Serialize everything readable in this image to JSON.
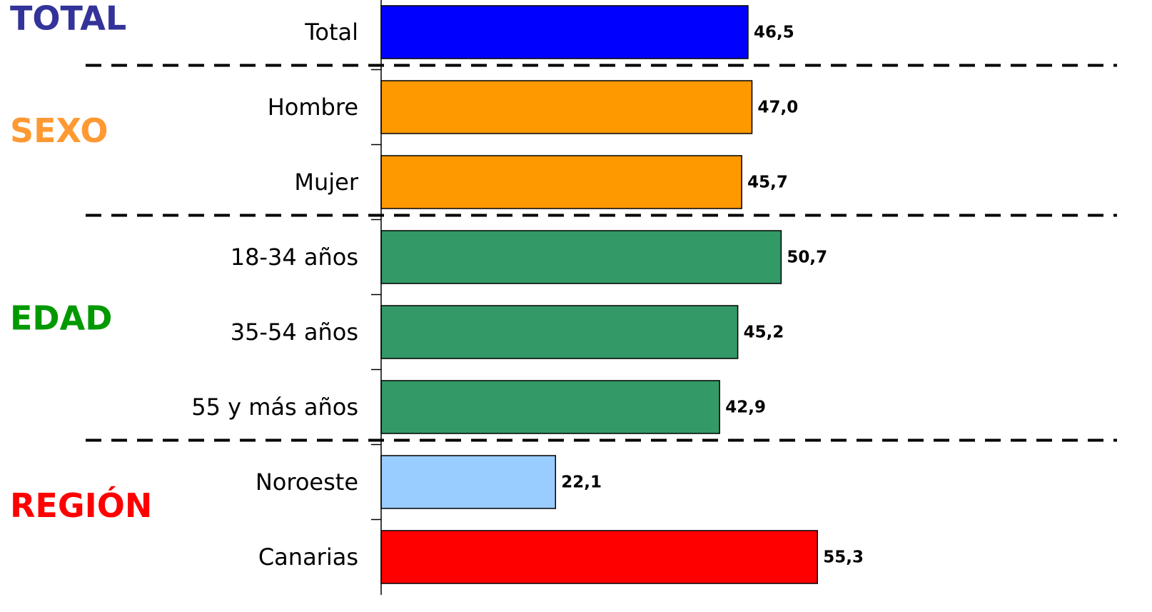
{
  "chart_data": {
    "type": "bar",
    "orientation": "horizontal",
    "xlim": [
      0,
      93
    ],
    "groups": [
      {
        "name": "TOTAL",
        "color": "#333399",
        "categories": [
          "Total"
        ],
        "values": [
          46.5
        ],
        "value_labels": [
          "46,5"
        ],
        "colors": [
          "#0000ff"
        ]
      },
      {
        "name": "SEXO",
        "color": "#ff9933",
        "categories": [
          "Hombre",
          "Mujer"
        ],
        "values": [
          47.0,
          45.7
        ],
        "value_labels": [
          "47,0",
          "45,7"
        ],
        "colors": [
          "#ff9900",
          "#ff9900"
        ]
      },
      {
        "name": "EDAD",
        "color": "#009900",
        "categories": [
          "18-34 años",
          "35-54 años",
          "55 y más años"
        ],
        "values": [
          50.7,
          45.2,
          42.9
        ],
        "value_labels": [
          "50,7",
          "45,2",
          "42,9"
        ],
        "colors": [
          "#339966",
          "#339966",
          "#339966"
        ]
      },
      {
        "name": "REGIÓN",
        "color": "#ff0000",
        "categories": [
          "Noroeste",
          "Canarias"
        ],
        "values": [
          22.1,
          55.3
        ],
        "value_labels": [
          "22,1",
          "55,3"
        ],
        "colors": [
          "#99ccff",
          "#ff0000"
        ]
      }
    ]
  }
}
